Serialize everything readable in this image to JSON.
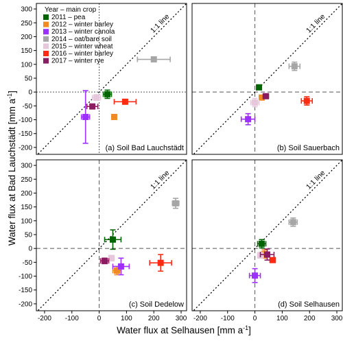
{
  "figure": {
    "xlabel": "Water flux at Selhausen [mm a",
    "xlabel_sup": "-1",
    "xlabel_end": "]",
    "ylabel": "Water flux at Bad Lauchstädt [mm a",
    "ylabel_sup": "-1",
    "ylabel_end": "]",
    "one_to_one_label": "1:1 line",
    "legend_title": "Year – main crop"
  },
  "chart_data": {
    "type": "scatter",
    "xlim": [
      -230,
      320
    ],
    "ylim": [
      -225,
      320
    ],
    "x_ticks": [
      -200,
      -100,
      0,
      100,
      200,
      300
    ],
    "y_ticks": [
      -200,
      -150,
      -100,
      -50,
      0,
      50,
      100,
      150,
      200,
      250,
      300
    ],
    "grid": false,
    "legend_position": "top-left of panel (a)",
    "series": [
      {
        "name": "2011 – pea",
        "color": "#006400"
      },
      {
        "name": "2012 – winter barley",
        "color": "#f08a24"
      },
      {
        "name": "2013 – winter canola",
        "color": "#9b30ff"
      },
      {
        "name": "2014 – oat/bare soil",
        "color": "#a6a6a6"
      },
      {
        "name": "2015 – winter wheat",
        "color": "#e6c7dc"
      },
      {
        "name": "2016 – winter barley",
        "color": "#ff2a12"
      },
      {
        "name": "2017 – winter rye",
        "color": "#8b1c62"
      }
    ],
    "panels": [
      {
        "label": "(a) Soil Bad Lauchstädt",
        "points": [
          {
            "series": 0,
            "x": 30,
            "y": -8,
            "xerr": 15,
            "yerr": 15
          },
          {
            "series": 1,
            "x": 55,
            "y": -90,
            "xerr": 0,
            "yerr": 0
          },
          {
            "series": 2,
            "x": -50,
            "y": -90,
            "xerr": 15,
            "yerr": 95
          },
          {
            "series": 3,
            "x": 200,
            "y": 118,
            "xerr": 60,
            "yerr": 0
          },
          {
            "series": 4,
            "x": -10,
            "y": -20,
            "xerr": 15,
            "yerr": 10
          },
          {
            "series": 5,
            "x": 95,
            "y": -35,
            "xerr": 40,
            "yerr": 8
          },
          {
            "series": 6,
            "x": -25,
            "y": -52,
            "xerr": 20,
            "yerr": 6
          }
        ]
      },
      {
        "label": "(b) Soil Sauerbach",
        "points": [
          {
            "series": 0,
            "x": 15,
            "y": 17,
            "xerr": 0,
            "yerr": 0
          },
          {
            "series": 1,
            "x": 25,
            "y": -20,
            "xerr": 0,
            "yerr": 0
          },
          {
            "series": 2,
            "x": -25,
            "y": -98,
            "xerr": 25,
            "yerr": 20
          },
          {
            "series": 3,
            "x": 145,
            "y": 93,
            "xerr": 20,
            "yerr": 15
          },
          {
            "series": 4,
            "x": 0,
            "y": -38,
            "xerr": 15,
            "yerr": 15
          },
          {
            "series": 5,
            "x": 190,
            "y": -32,
            "xerr": 20,
            "yerr": 15
          },
          {
            "series": 6,
            "x": 40,
            "y": -15,
            "xerr": 10,
            "yerr": 8
          }
        ]
      },
      {
        "label": "(c) Soil Dedelow",
        "points": [
          {
            "series": 0,
            "x": 50,
            "y": 32,
            "xerr": 30,
            "yerr": 35
          },
          {
            "series": 1,
            "x": 65,
            "y": -80,
            "xerr": 15,
            "yerr": 15
          },
          {
            "series": 2,
            "x": 80,
            "y": -65,
            "xerr": 30,
            "yerr": 30
          },
          {
            "series": 3,
            "x": 280,
            "y": 163,
            "xerr": 12,
            "yerr": 18
          },
          {
            "series": 4,
            "x": 45,
            "y": -35,
            "xerr": 10,
            "yerr": 10
          },
          {
            "series": 5,
            "x": 225,
            "y": -52,
            "xerr": 40,
            "yerr": 30
          },
          {
            "series": 6,
            "x": 20,
            "y": -45,
            "xerr": 15,
            "yerr": 10
          }
        ]
      },
      {
        "label": "(d) Soil Selhausen",
        "points": [
          {
            "series": 0,
            "x": 25,
            "y": 17,
            "xerr": 15,
            "yerr": 15
          },
          {
            "series": 1,
            "x": 35,
            "y": -20,
            "xerr": 10,
            "yerr": 15
          },
          {
            "series": 2,
            "x": 0,
            "y": -98,
            "xerr": 20,
            "yerr": 25
          },
          {
            "series": 3,
            "x": 140,
            "y": 95,
            "xerr": 15,
            "yerr": 15
          },
          {
            "series": 4,
            "x": 20,
            "y": -25,
            "xerr": 10,
            "yerr": 10
          },
          {
            "series": 5,
            "x": 65,
            "y": -42,
            "xerr": 10,
            "yerr": 8
          },
          {
            "series": 6,
            "x": 45,
            "y": -22,
            "xerr": 25,
            "yerr": 20
          }
        ]
      }
    ]
  }
}
